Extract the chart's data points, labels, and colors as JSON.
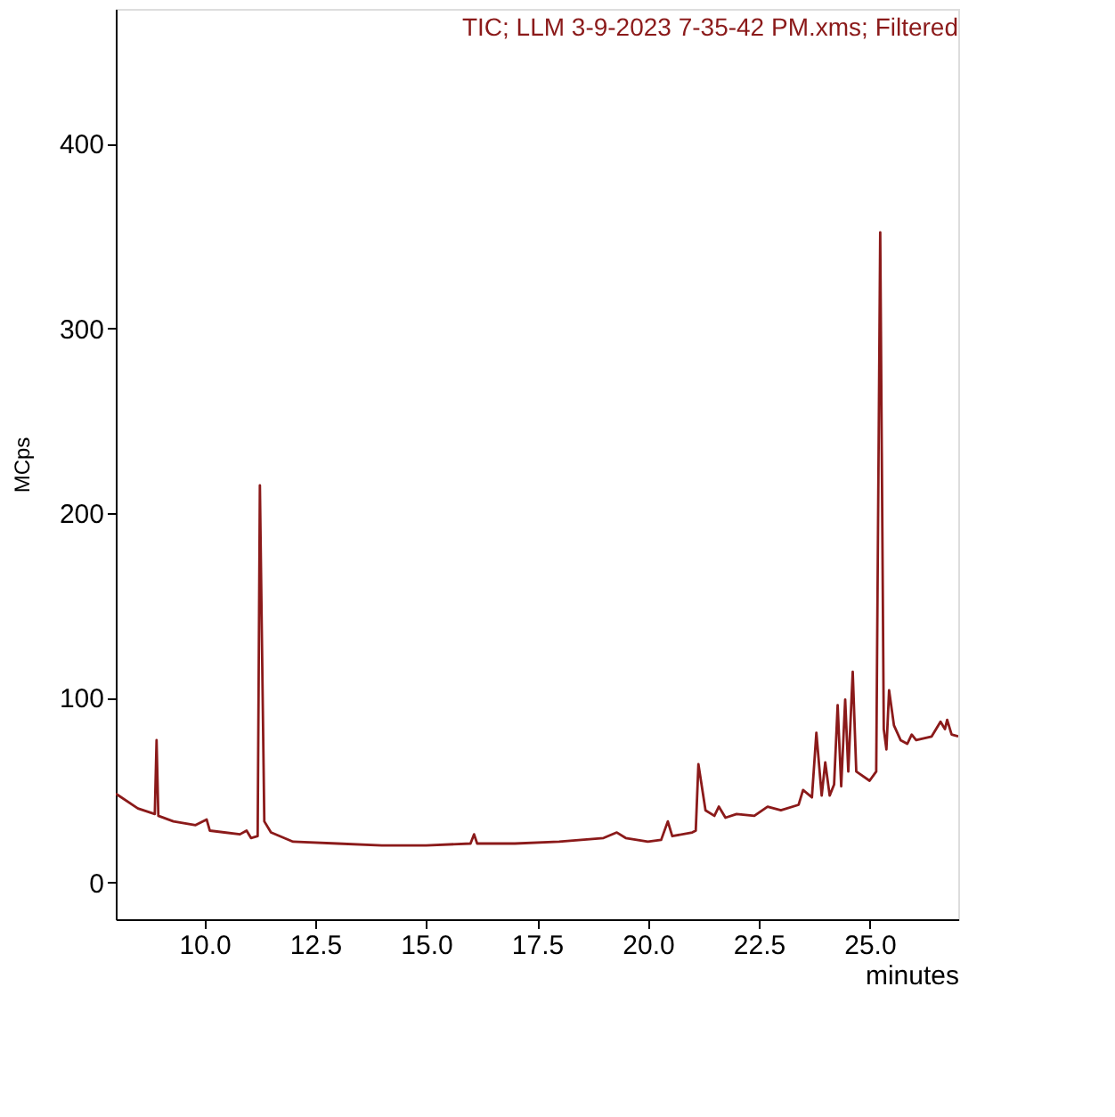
{
  "chart_data": {
    "type": "line",
    "title": "TIC;  LLM 3-9-2023 7-35-42 PM.xms;  Filtered",
    "xlabel": "minutes",
    "ylabel": "MCps",
    "x": [
      8.0,
      8.5,
      8.88,
      8.92,
      8.96,
      9.3,
      9.8,
      10.05,
      10.12,
      10.8,
      10.95,
      11.05,
      11.2,
      11.25,
      11.35,
      11.5,
      12.0,
      13.0,
      14.0,
      15.0,
      16.0,
      16.08,
      16.15,
      17.0,
      18.0,
      19.0,
      19.3,
      19.5,
      20.0,
      20.3,
      20.45,
      20.55,
      21.0,
      21.08,
      21.14,
      21.3,
      21.5,
      21.6,
      21.75,
      22.0,
      22.4,
      22.7,
      23.0,
      23.4,
      23.5,
      23.7,
      23.8,
      23.92,
      24.0,
      24.1,
      24.2,
      24.28,
      24.36,
      24.45,
      24.52,
      24.62,
      24.7,
      25.0,
      25.15,
      25.24,
      25.32,
      25.38,
      25.44,
      25.55,
      25.7,
      25.85,
      25.95,
      26.05,
      26.4,
      26.6,
      26.7,
      26.75,
      26.85,
      27.0
    ],
    "series": [
      {
        "color": "#8b1a1a",
        "values": [
          48,
          40,
          37,
          77,
          36,
          33,
          31,
          34,
          28,
          26,
          28,
          24,
          25,
          215,
          33,
          27,
          22,
          21,
          20,
          20,
          21,
          26,
          21,
          21,
          22,
          24,
          27,
          24,
          22,
          23,
          33,
          25,
          27,
          28,
          64,
          39,
          36,
          41,
          35,
          37,
          36,
          41,
          39,
          42,
          50,
          46,
          81,
          47,
          65,
          47,
          53,
          96,
          52,
          99,
          60,
          114,
          60,
          55,
          60,
          352,
          83,
          72,
          104,
          85,
          77,
          75,
          80,
          77,
          79,
          87,
          83,
          88,
          80,
          79
        ]
      }
    ],
    "xlim": [
      8,
      27
    ],
    "ylim": [
      -20,
      473
    ],
    "xticks": [
      {
        "value": 10,
        "label": "10.0"
      },
      12.5,
      {
        "value": 15,
        "label": "15.0"
      },
      17.5,
      {
        "value": 20,
        "label": "20.0"
      },
      22.5,
      {
        "value": 25,
        "label": "25.0"
      }
    ],
    "yticks": [
      0,
      100,
      200,
      300,
      400
    ],
    "grid": false,
    "marker": "none",
    "line_style": "solid"
  }
}
